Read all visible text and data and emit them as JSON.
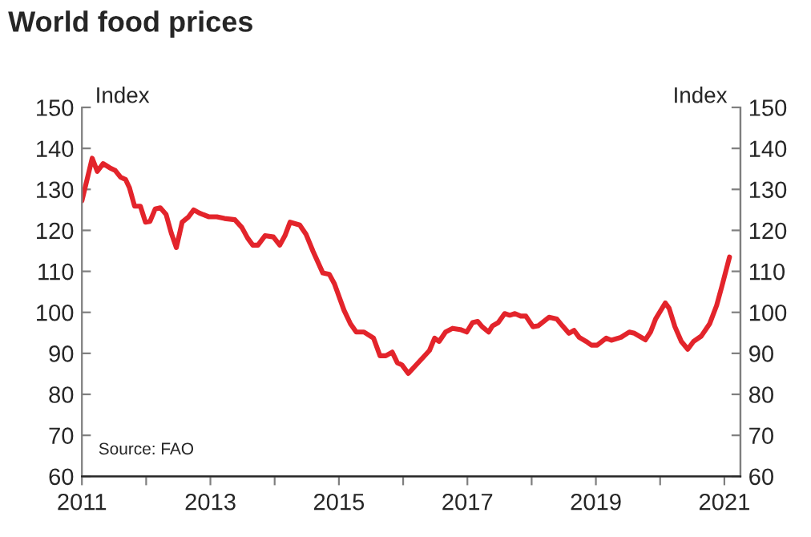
{
  "chart_data": {
    "type": "line",
    "title": "World food prices",
    "ylabel": "Index",
    "y2label": "Index",
    "annotations": [
      "Source: FAO"
    ],
    "x": [
      2011.0,
      2011.16,
      2011.24,
      2011.33,
      2011.43,
      2011.52,
      2011.6,
      2011.68,
      2011.74,
      2011.82,
      2011.91,
      2011.99,
      2012.06,
      2012.14,
      2012.22,
      2012.31,
      2012.39,
      2012.47,
      2012.56,
      2012.66,
      2012.74,
      2012.83,
      2012.98,
      2013.1,
      2013.22,
      2013.38,
      2013.49,
      2013.58,
      2013.66,
      2013.74,
      2013.85,
      2013.98,
      2014.08,
      2014.16,
      2014.24,
      2014.39,
      2014.49,
      2014.6,
      2014.75,
      2014.85,
      2014.93,
      2015.08,
      2015.18,
      2015.27,
      2015.39,
      2015.54,
      2015.64,
      2015.73,
      2015.83,
      2015.91,
      2015.98,
      2016.08,
      2016.18,
      2016.31,
      2016.41,
      2016.49,
      2016.56,
      2016.66,
      2016.77,
      2016.89,
      2016.99,
      2017.08,
      2017.16,
      2017.23,
      2017.33,
      2017.39,
      2017.48,
      2017.58,
      2017.66,
      2017.74,
      2017.83,
      2017.91,
      2018.02,
      2018.1,
      2018.27,
      2018.39,
      2018.48,
      2018.58,
      2018.66,
      2018.74,
      2018.85,
      2018.93,
      2019.02,
      2019.16,
      2019.24,
      2019.39,
      2019.52,
      2019.6,
      2019.77,
      2019.85,
      2019.93,
      2020.08,
      2020.14,
      2020.23,
      2020.33,
      2020.43,
      2020.52,
      2020.64,
      2020.77,
      2020.88,
      2020.96,
      2021.08
    ],
    "series": [
      {
        "color": "#e3242b",
        "values": [
          127.2,
          137.6,
          134.4,
          136.3,
          135.3,
          134.6,
          133.0,
          132.4,
          130.4,
          125.9,
          125.9,
          122.0,
          122.2,
          125.2,
          125.5,
          123.9,
          119.4,
          115.8,
          122.0,
          123.3,
          125.0,
          124.2,
          123.3,
          123.3,
          122.9,
          122.6,
          120.7,
          118.1,
          116.4,
          116.4,
          118.7,
          118.4,
          116.4,
          118.7,
          122.0,
          121.3,
          119.0,
          114.8,
          109.6,
          109.3,
          107.0,
          100.5,
          97.2,
          95.2,
          95.2,
          93.7,
          89.4,
          89.4,
          90.3,
          87.7,
          87.2,
          85.1,
          86.8,
          89.0,
          90.7,
          93.7,
          92.9,
          95.2,
          96.1,
          95.8,
          95.2,
          97.5,
          97.8,
          96.5,
          95.2,
          96.7,
          97.5,
          99.7,
          99.3,
          99.7,
          99.1,
          99.1,
          96.5,
          96.7,
          98.8,
          98.4,
          96.7,
          94.9,
          95.6,
          93.9,
          92.9,
          92.0,
          92.0,
          93.7,
          93.2,
          93.9,
          95.2,
          94.9,
          93.3,
          95.2,
          98.4,
          102.3,
          101.0,
          96.5,
          92.9,
          91.0,
          92.9,
          94.2,
          97.2,
          101.7,
          106.3,
          113.5
        ]
      }
    ],
    "xlim": [
      2011,
      2021.25
    ],
    "xticks": [
      2011,
      {
        "value": 2012,
        "label": null
      },
      2013,
      {
        "value": 2014,
        "label": null
      },
      2015,
      {
        "value": 2016,
        "label": null
      },
      2017,
      {
        "value": 2018,
        "label": null
      },
      2019,
      {
        "value": 2020,
        "label": null
      },
      2021
    ],
    "ylim": [
      60,
      150
    ],
    "yticks": [
      60,
      70,
      80,
      90,
      100,
      110,
      120,
      130,
      140,
      150
    ],
    "y2lim": [
      60,
      150
    ],
    "y2ticks": [
      60,
      70,
      80,
      90,
      100,
      110,
      120,
      130,
      140,
      150
    ],
    "grid": false,
    "line_style": "solid"
  }
}
